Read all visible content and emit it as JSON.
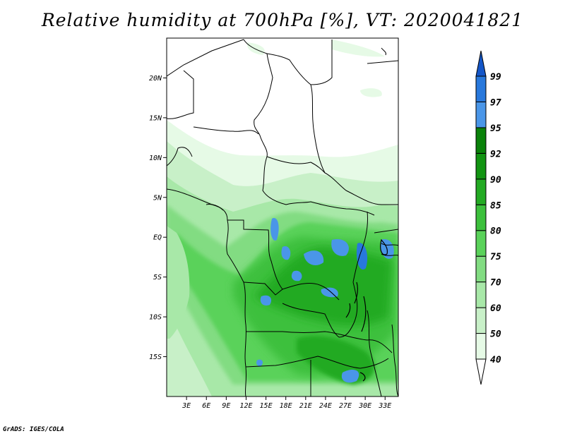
{
  "title": "Relative humidity at 700hPa [%], VT: 2020041821",
  "credit": "GrADS: IGES/COLA",
  "map": {
    "lon_range": [
      0,
      35
    ],
    "lat_range": [
      -20,
      25
    ],
    "lon_ticks": [
      "3E",
      "6E",
      "9E",
      "12E",
      "15E",
      "18E",
      "21E",
      "24E",
      "27E",
      "30E",
      "33E"
    ],
    "lat_ticks": [
      "20N",
      "15N",
      "10N",
      "5N",
      "EQ",
      "5S",
      "10S",
      "15S"
    ]
  },
  "colorbar": {
    "levels": [
      "40",
      "50",
      "60",
      "70",
      "75",
      "80",
      "85",
      "90",
      "92",
      "95",
      "97",
      "99"
    ],
    "colors": [
      "#ffffff",
      "#e6fae6",
      "#c8f0c8",
      "#a8e8a8",
      "#82dc82",
      "#5ad25a",
      "#3cc03c",
      "#23aa23",
      "#129412",
      "#0a820a",
      "#4a96e8",
      "#2878dc",
      "#1456c8"
    ]
  }
}
